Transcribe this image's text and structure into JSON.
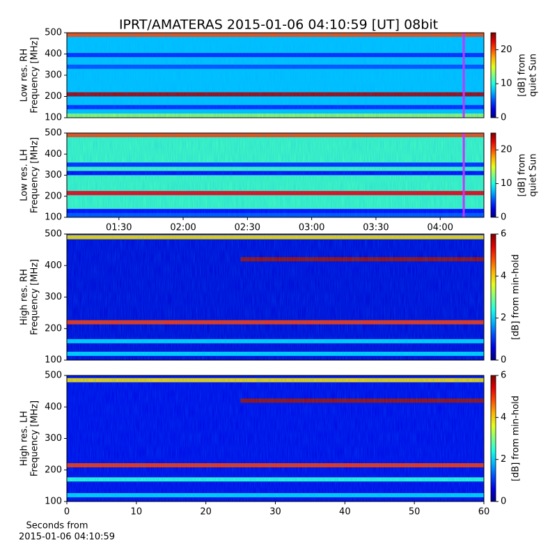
{
  "title": "IPRT/AMATERAS 2015-01-06 04:10:59 [UT]   08bit",
  "chart_data": [
    {
      "type": "heatmap",
      "ylabel": [
        "Low res. RH",
        "Frequency [MHz]"
      ],
      "colorbar_label": [
        "[dB] from",
        "quiet Sun"
      ],
      "ylim": [
        100,
        500
      ],
      "yticks": [
        100,
        200,
        300,
        400,
        500
      ],
      "xlim": [
        65.7,
        260.4
      ],
      "clim": [
        0,
        25
      ],
      "cticks": [
        0,
        10,
        20
      ],
      "background": 8,
      "marker_x": 251,
      "marker_color": "#c832ff",
      "bands": [
        {
          "y": 490,
          "value": 20
        },
        {
          "y": 395,
          "value": 4
        },
        {
          "y": 340,
          "value": 5
        },
        {
          "y": 210,
          "value": 24
        },
        {
          "y": 150,
          "value": 4
        },
        {
          "y": 110,
          "value": 13
        }
      ]
    },
    {
      "type": "heatmap",
      "ylabel": [
        "Low res. LH",
        "Frequency [MHz]"
      ],
      "colorbar_label": [
        "[dB] from",
        "quiet Sun"
      ],
      "ylim": [
        100,
        500
      ],
      "yticks": [
        100,
        200,
        300,
        400,
        500
      ],
      "xlim": [
        65.7,
        260.4
      ],
      "clim": [
        0,
        25
      ],
      "cticks": [
        0,
        10,
        20
      ],
      "xticks": [
        {
          "value": 90,
          "label": "01:30"
        },
        {
          "value": 120,
          "label": "02:00"
        },
        {
          "value": 150,
          "label": "02:30"
        },
        {
          "value": 180,
          "label": "03:00"
        },
        {
          "value": 210,
          "label": "03:30"
        },
        {
          "value": 240,
          "label": "04:00"
        }
      ],
      "background": 11,
      "marker_x": 251,
      "marker_color": "#c832ff",
      "bands": [
        {
          "y": 490,
          "value": 20
        },
        {
          "y": 350,
          "value": 4
        },
        {
          "y": 310,
          "value": 3
        },
        {
          "y": 215,
          "value": 22
        },
        {
          "y": 130,
          "value": 3
        },
        {
          "y": 110,
          "value": 5
        }
      ]
    },
    {
      "type": "heatmap",
      "ylabel": [
        "High res. RH",
        "Frequency [MHz]"
      ],
      "colorbar_label": [
        "[dB] from min-hold"
      ],
      "ylim": [
        100,
        500
      ],
      "yticks": [
        100,
        200,
        300,
        400,
        500
      ],
      "xlim": [
        0,
        60
      ],
      "clim": [
        0,
        6
      ],
      "cticks": [
        0,
        2,
        4,
        6
      ],
      "background": 0.5,
      "bands": [
        {
          "y": 490,
          "value": 4
        },
        {
          "y": 420,
          "value": 5.8,
          "from": 25
        },
        {
          "y": 220,
          "value": 5
        },
        {
          "y": 160,
          "value": 2
        },
        {
          "y": 120,
          "value": 2
        }
      ]
    },
    {
      "type": "heatmap",
      "ylabel": [
        "High res. LH",
        "Frequency [MHz]"
      ],
      "colorbar_label": [
        "[dB] from min-hold"
      ],
      "ylim": [
        100,
        500
      ],
      "yticks": [
        100,
        200,
        300,
        400,
        500
      ],
      "xlim": [
        0,
        60
      ],
      "clim": [
        0,
        6
      ],
      "cticks": [
        0,
        2,
        4,
        6
      ],
      "xticks": [
        0,
        10,
        20,
        30,
        40,
        50,
        60
      ],
      "xlabel": [
        "Seconds from",
        "2015-01-06 04:10:59"
      ],
      "background": 0.6,
      "bands": [
        {
          "y": 485,
          "value": 4
        },
        {
          "y": 420,
          "value": 5.8,
          "from": 25
        },
        {
          "y": 215,
          "value": 5
        },
        {
          "y": 170,
          "value": 2.5
        },
        {
          "y": 120,
          "value": 2
        }
      ]
    }
  ]
}
